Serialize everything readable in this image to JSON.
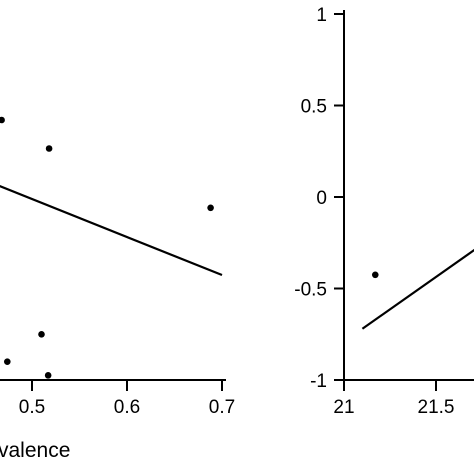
{
  "chart_data": [
    {
      "type": "scatter",
      "xlabel": "valence",
      "ylabel": "",
      "x_ticks": [
        "0.5",
        "0.6",
        "0.7"
      ],
      "points": [
        {
          "x": 0.468,
          "y": 0.83
        },
        {
          "x": 0.518,
          "y": 0.58
        },
        {
          "x": 0.688,
          "y": 0.06
        },
        {
          "x": 0.51,
          "y": -1.05
        },
        {
          "x": 0.474,
          "y": -1.29
        },
        {
          "x": 0.517,
          "y": -1.41
        }
      ],
      "fit_line": {
        "x": [
          0.4,
          0.7
        ],
        "y": [
          0.47,
          -0.53
        ]
      },
      "grid": false
    },
    {
      "type": "scatter",
      "xlabel": "",
      "ylabel": "",
      "x_ticks": [
        "21",
        "21.5"
      ],
      "y_ticks": [
        "1",
        "0.5",
        "0",
        "-0.5",
        "-1"
      ],
      "ylim": [
        -1,
        1
      ],
      "points": [
        {
          "x": 21.17,
          "y": -0.425
        }
      ],
      "fit_line": {
        "x": [
          21.1,
          21.75
        ],
        "y": [
          -0.72,
          -0.26
        ]
      },
      "grid": false
    }
  ]
}
